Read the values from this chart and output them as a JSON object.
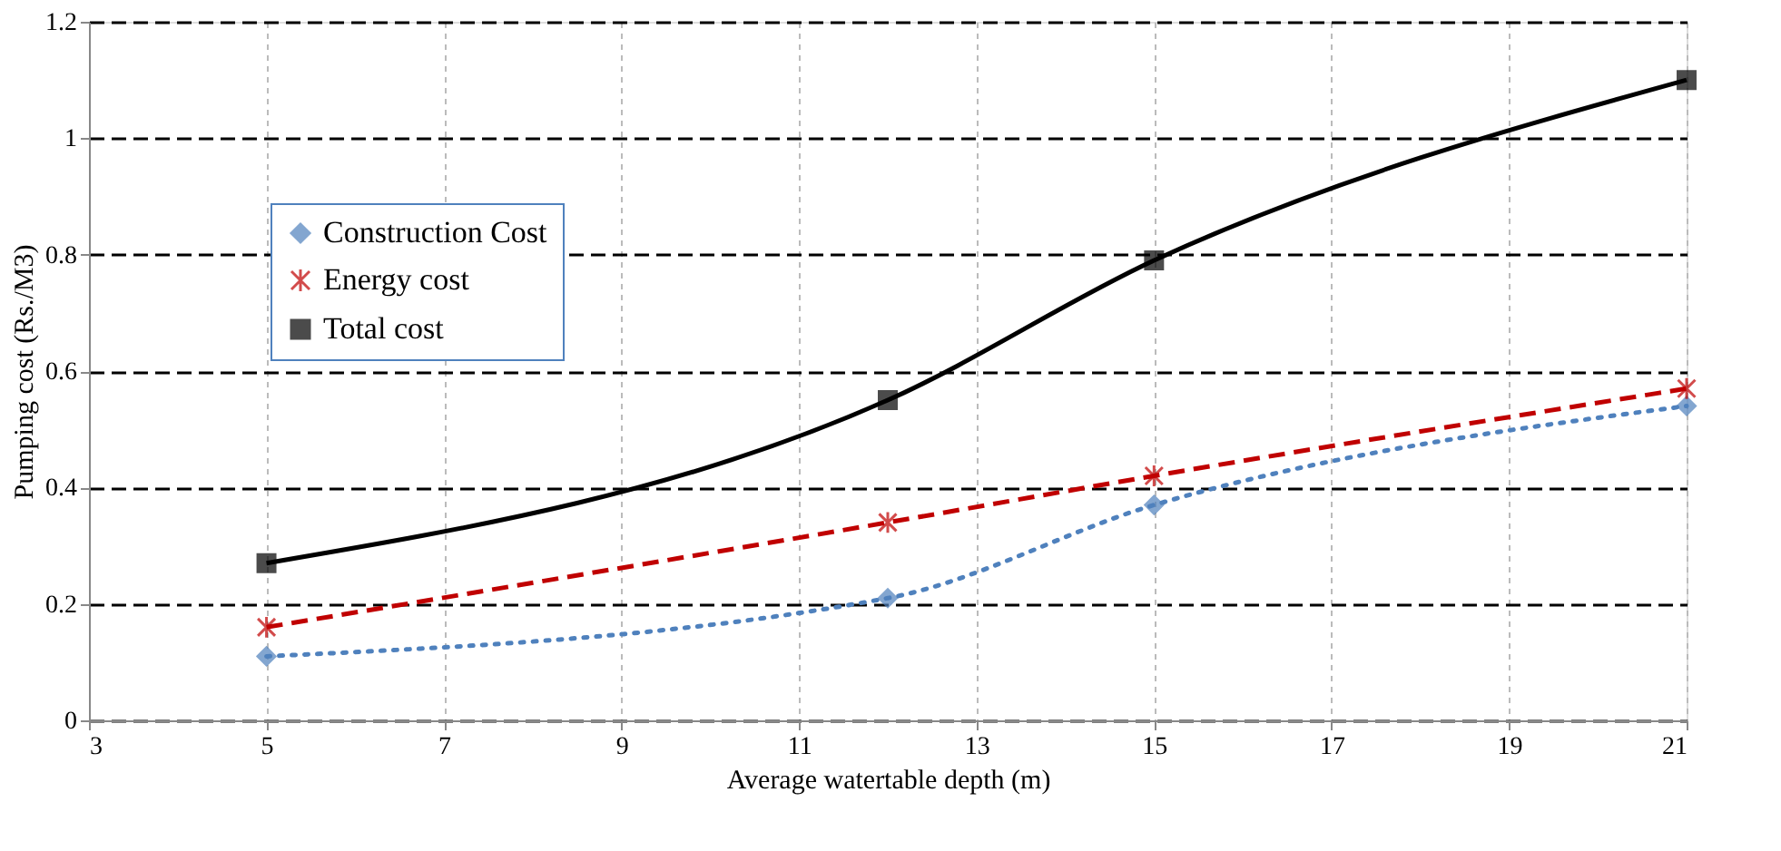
{
  "chart_data": {
    "type": "line",
    "xlabel": "Average watertable depth (m)",
    "ylabel": "Pumping cost (Rs./M3)",
    "x": [
      5,
      12,
      15,
      21
    ],
    "series": [
      {
        "name": "Construction Cost",
        "color": "#4f81bd",
        "values": [
          0.11,
          0.21,
          0.37,
          0.54
        ],
        "line_style": "dotted",
        "marker": "diamond"
      },
      {
        "name": "Energy cost",
        "color": "#c00000",
        "values": [
          0.16,
          0.34,
          0.42,
          0.57
        ],
        "line_style": "dashed",
        "marker": "cross"
      },
      {
        "name": "Total cost",
        "color": "#000000",
        "values": [
          0.27,
          0.55,
          0.79,
          1.1
        ],
        "line_style": "solid",
        "marker": "square"
      }
    ],
    "xlim": [
      3,
      21
    ],
    "xticks": [
      3,
      5,
      7,
      9,
      11,
      13,
      15,
      17,
      19,
      21
    ],
    "ylim": [
      0,
      1.2
    ],
    "yticks": [
      0,
      0.2,
      0.4,
      0.6,
      0.8,
      1,
      1.2
    ],
    "grid": true,
    "legend": "top left"
  }
}
